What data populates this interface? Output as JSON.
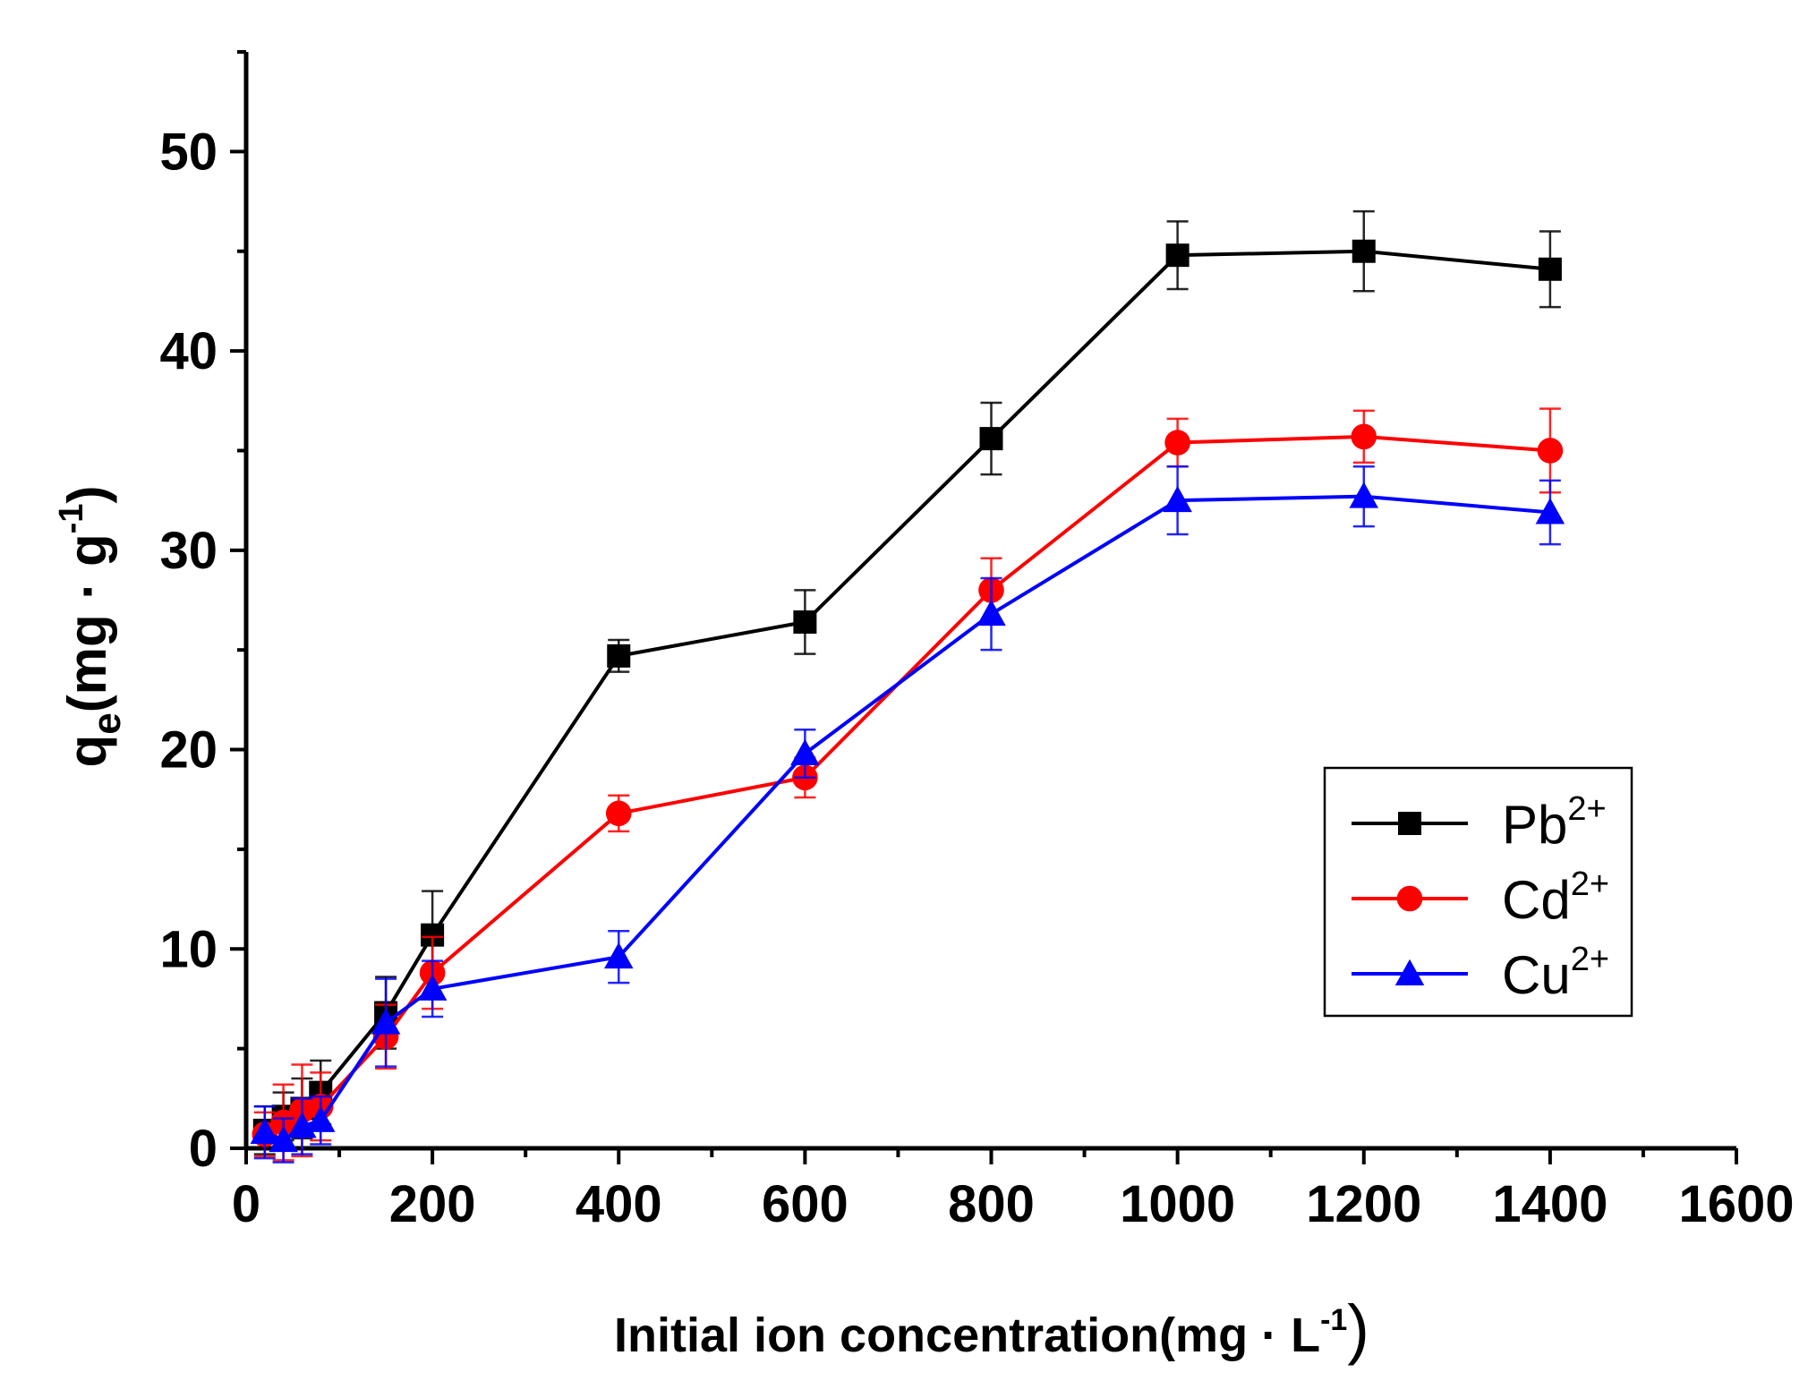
{
  "chart_data": {
    "type": "line",
    "title": "",
    "xlabel": {
      "main": "Initial ion concentration(mg",
      "dot": "·",
      "unit": "L",
      "sup": "-1",
      "close": ")"
    },
    "ylabel": {
      "base": "q",
      "sub": "e",
      "mid": "(mg · g",
      "sup": "-1",
      "close": ")"
    },
    "xlim": [
      0,
      1600
    ],
    "ylim": [
      0,
      55
    ],
    "x_ticks": [
      0,
      200,
      400,
      600,
      800,
      1000,
      1200,
      1400,
      1600
    ],
    "y_ticks": [
      0,
      10,
      20,
      30,
      40,
      50
    ],
    "x_tick_labels": [
      "0",
      "200",
      "400",
      "600",
      "800",
      "1000",
      "1200",
      "1400",
      "1600"
    ],
    "y_tick_labels": [
      "0",
      "10",
      "20",
      "30",
      "40",
      "50"
    ],
    "x": [
      20,
      40,
      60,
      80,
      150,
      200,
      400,
      600,
      800,
      1000,
      1200,
      1400
    ],
    "series": [
      {
        "name": "Pb",
        "sup": "2+",
        "color": "#000000",
        "marker": "square",
        "values": [
          0.9,
          1.6,
          2.0,
          2.8,
          6.8,
          10.7,
          24.7,
          26.4,
          35.6,
          44.8,
          45.0,
          44.1
        ],
        "errors": [
          1.2,
          1.2,
          1.5,
          1.6,
          1.8,
          2.2,
          0.8,
          1.6,
          1.8,
          1.7,
          2.0,
          1.9
        ]
      },
      {
        "name": "Cd",
        "sup": "2+",
        "color": "#ff0000",
        "marker": "circle",
        "values": [
          0.7,
          1.3,
          1.9,
          2.1,
          5.6,
          8.8,
          16.8,
          18.6,
          28.0,
          35.4,
          35.7,
          35.0
        ],
        "errors": [
          1.1,
          1.9,
          2.3,
          1.7,
          1.6,
          1.8,
          0.9,
          1.0,
          1.6,
          1.2,
          1.3,
          2.1
        ]
      },
      {
        "name": "Cu",
        "sup": "2+",
        "color": "#0000ff",
        "marker": "triangle",
        "values": [
          0.8,
          0.4,
          1.1,
          1.4,
          6.3,
          8.0,
          9.6,
          19.8,
          26.8,
          32.5,
          32.7,
          31.9
        ],
        "errors": [
          1.3,
          1.1,
          1.4,
          1.2,
          2.2,
          1.4,
          1.3,
          1.2,
          1.8,
          1.7,
          1.5,
          1.6
        ]
      }
    ],
    "legend": {
      "position": "right-center",
      "frame": true
    },
    "grid": false
  }
}
